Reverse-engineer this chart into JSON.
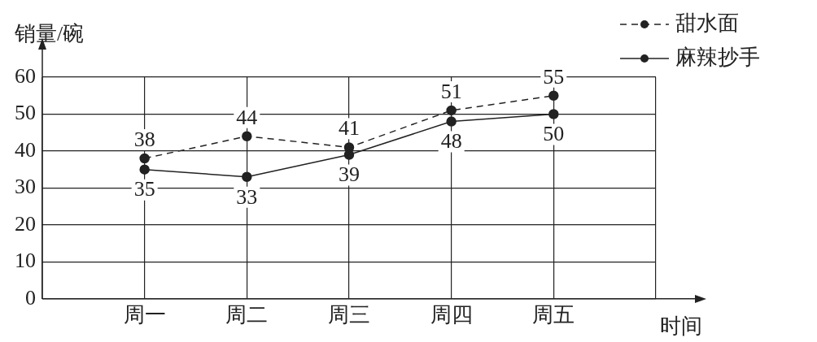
{
  "chart_data": {
    "type": "line",
    "xlabel": "时间",
    "ylabel": "销量/碗",
    "categories": [
      "周一",
      "周二",
      "周三",
      "周四",
      "周五"
    ],
    "series": [
      {
        "name": "甜水面",
        "color": "#222222",
        "line_style": "dashed",
        "values": [
          38,
          44,
          41,
          51,
          55
        ]
      },
      {
        "name": "麻辣抄手",
        "color": "#222222",
        "line_style": "solid",
        "values": [
          35,
          33,
          39,
          48,
          50
        ]
      }
    ],
    "ylim": [
      0,
      60
    ],
    "yticks": [
      0,
      10,
      20,
      30,
      40,
      50,
      60
    ],
    "grid": true,
    "legend": "top right",
    "marker": "circle",
    "data_labels": true
  }
}
